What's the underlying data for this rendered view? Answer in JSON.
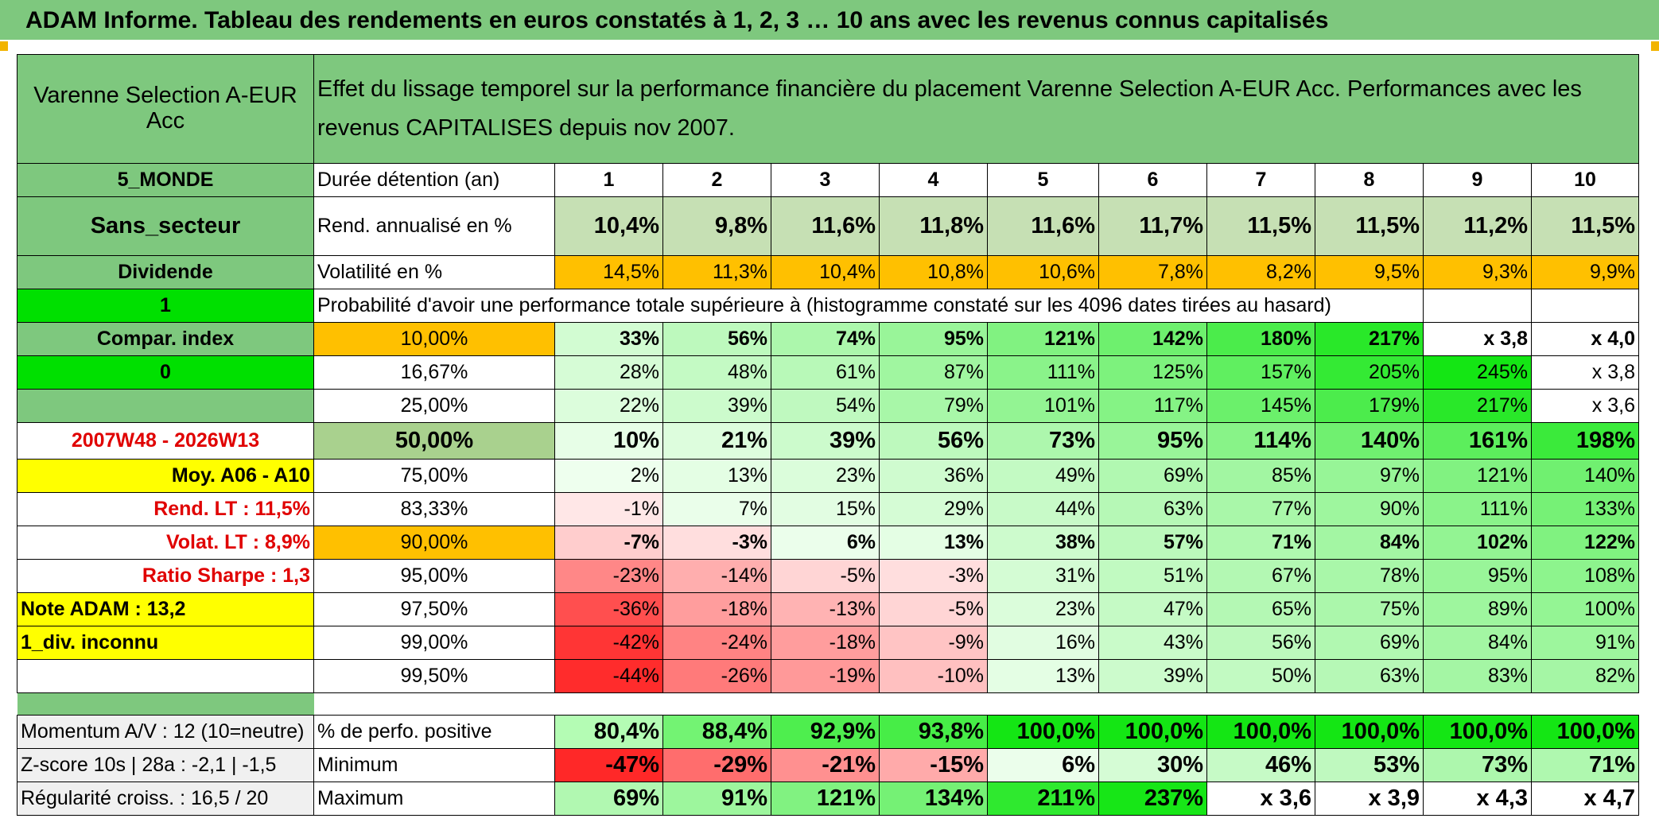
{
  "title": "ADAM Informe. Tableau des rendements en euros constatés à 1, 2, 3 … 10 ans avec les revenus connus capitalisés",
  "fund": "Varenne Selection A-EUR Acc",
  "header_text": "Effet du lissage temporel sur la performance financière du placement Varenne Selection A-EUR Acc. Performances avec les revenus CAPITALISES depuis nov 2007.",
  "left": {
    "zone": "5_MONDE",
    "sector": "Sans_secteur",
    "dividend": "Dividende",
    "one": "1",
    "compar": "Compar. index",
    "zero": "0",
    "period": "2007W48 - 2026W13",
    "moy": "Moy. A06 - A10",
    "rend_lt": "Rend. LT :   11,5%",
    "volat_lt": "Volat. LT :   8,9%",
    "sharpe": "Ratio Sharpe :   1,3",
    "note": "Note ADAM : 13,2",
    "div": "1_div. inconnu",
    "momentum": "Momentum A/V : 12 (10=neutre)",
    "zscore": "Z-score 10s | 28a : -2,1 | -1,5",
    "regul": "Régularité croiss. : 16,5 / 20"
  },
  "duration_label": "Durée détention (an)",
  "years": [
    "1",
    "2",
    "3",
    "4",
    "5",
    "6",
    "7",
    "8",
    "9",
    "10"
  ],
  "rend_label": "Rend. annualisé en %",
  "rend": [
    "10,4%",
    "9,8%",
    "11,6%",
    "11,8%",
    "11,6%",
    "11,7%",
    "11,5%",
    "11,5%",
    "11,2%",
    "11,5%"
  ],
  "vol_label": "Volatilité en %",
  "vol": [
    "14,5%",
    "11,3%",
    "10,4%",
    "10,8%",
    "10,6%",
    "7,8%",
    "8,2%",
    "9,5%",
    "9,3%",
    "9,9%"
  ],
  "prob_label": "Probabilité d'avoir une performance totale supérieure à (histogramme constaté sur les 4096 dates tirées au hasard)",
  "prob_rows": [
    {
      "p": "10,00%",
      "v": [
        "33%",
        "56%",
        "74%",
        "95%",
        "121%",
        "142%",
        "180%",
        "217%",
        "x 3,8",
        "x 4,0"
      ]
    },
    {
      "p": "16,67%",
      "v": [
        "28%",
        "48%",
        "61%",
        "87%",
        "111%",
        "125%",
        "157%",
        "205%",
        "245%",
        "x 3,8"
      ]
    },
    {
      "p": "25,00%",
      "v": [
        "22%",
        "39%",
        "54%",
        "79%",
        "101%",
        "117%",
        "145%",
        "179%",
        "217%",
        "x 3,6"
      ]
    },
    {
      "p": "50,00%",
      "v": [
        "10%",
        "21%",
        "39%",
        "56%",
        "73%",
        "95%",
        "114%",
        "140%",
        "161%",
        "198%"
      ]
    },
    {
      "p": "75,00%",
      "v": [
        "2%",
        "13%",
        "23%",
        "36%",
        "49%",
        "69%",
        "85%",
        "97%",
        "121%",
        "140%"
      ]
    },
    {
      "p": "83,33%",
      "v": [
        "-1%",
        "7%",
        "15%",
        "29%",
        "44%",
        "63%",
        "77%",
        "90%",
        "111%",
        "133%"
      ]
    },
    {
      "p": "90,00%",
      "v": [
        "-7%",
        "-3%",
        "6%",
        "13%",
        "38%",
        "57%",
        "71%",
        "84%",
        "102%",
        "122%"
      ]
    },
    {
      "p": "95,00%",
      "v": [
        "-23%",
        "-14%",
        "-5%",
        "-3%",
        "31%",
        "51%",
        "67%",
        "78%",
        "95%",
        "108%"
      ]
    },
    {
      "p": "97,50%",
      "v": [
        "-36%",
        "-18%",
        "-13%",
        "-5%",
        "23%",
        "47%",
        "65%",
        "75%",
        "89%",
        "100%"
      ]
    },
    {
      "p": "99,00%",
      "v": [
        "-42%",
        "-24%",
        "-18%",
        "-9%",
        "16%",
        "43%",
        "56%",
        "69%",
        "84%",
        "91%"
      ]
    },
    {
      "p": "99,50%",
      "v": [
        "-44%",
        "-26%",
        "-19%",
        "-10%",
        "13%",
        "39%",
        "50%",
        "63%",
        "83%",
        "82%"
      ]
    }
  ],
  "pos_label": "% de perfo. positive",
  "pos": [
    "80,4%",
    "88,4%",
    "92,9%",
    "93,8%",
    "100,0%",
    "100,0%",
    "100,0%",
    "100,0%",
    "100,0%",
    "100,0%"
  ],
  "min_label": "Minimum",
  "min": [
    "-47%",
    "-29%",
    "-21%",
    "-15%",
    "6%",
    "30%",
    "46%",
    "53%",
    "73%",
    "71%"
  ],
  "max_label": "Maximum",
  "max": [
    "69%",
    "91%",
    "121%",
    "134%",
    "211%",
    "237%",
    "x 3,6",
    "x 3,9",
    "x 4,3",
    "x 4,7"
  ],
  "colors": {
    "header_green": "#7ec87e",
    "bright_green": "#00e000",
    "orange": "#ffc000",
    "yellow": "#ffff00",
    "red": "#ff2020"
  }
}
